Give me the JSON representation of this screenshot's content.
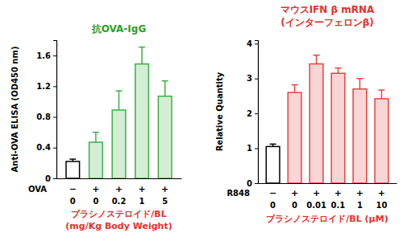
{
  "chart_data": [
    {
      "type": "bar",
      "title": "抗OVA-IgG",
      "y_label": "Anti-OVA ELISA (OD450 nm)",
      "x_label": [
        "ブラシノステロイド/BL",
        "(mg/Kg Body Weight)"
      ],
      "treatment": {
        "label": "OVA",
        "labels": [
          "−",
          "+",
          "+",
          "+",
          "+"
        ]
      },
      "categories": [
        "0",
        "0",
        "0.2",
        "1",
        "5"
      ],
      "values": [
        0.22,
        0.47,
        0.89,
        1.49,
        1.07
      ],
      "errors": [
        0.03,
        0.13,
        0.25,
        0.22,
        0.2
      ],
      "colors": [
        "#000000",
        "#3cb043",
        "#3cb043",
        "#3cb043",
        "#3cb043"
      ],
      "ylim": [
        0,
        1.8
      ],
      "yticks": [
        0,
        0.4,
        0.8,
        1.2,
        1.6
      ],
      "grid": false
    },
    {
      "type": "bar",
      "title": "マウスIFN β mRNA",
      "subtitle": "(インターフェロンβ)",
      "y_label": "Relative Quantity",
      "x_label": "ブラシノステロイド/BL (μM)",
      "treatment": {
        "label": "R848",
        "labels": [
          "−",
          "+",
          "+",
          "+",
          "+",
          "+"
        ]
      },
      "categories": [
        "0",
        "0",
        "0.01",
        "0.1",
        "1",
        "10"
      ],
      "values": [
        1.05,
        2.6,
        3.42,
        3.15,
        2.7,
        2.42
      ],
      "errors": [
        0.07,
        0.22,
        0.25,
        0.15,
        0.3,
        0.25
      ],
      "colors": [
        "#000000",
        "#e8423f",
        "#e8423f",
        "#e8423f",
        "#e8423f",
        "#e8423f"
      ],
      "ylim": [
        0,
        4.1
      ],
      "yticks": [
        0,
        1,
        2,
        3,
        4
      ],
      "grid": false
    }
  ]
}
